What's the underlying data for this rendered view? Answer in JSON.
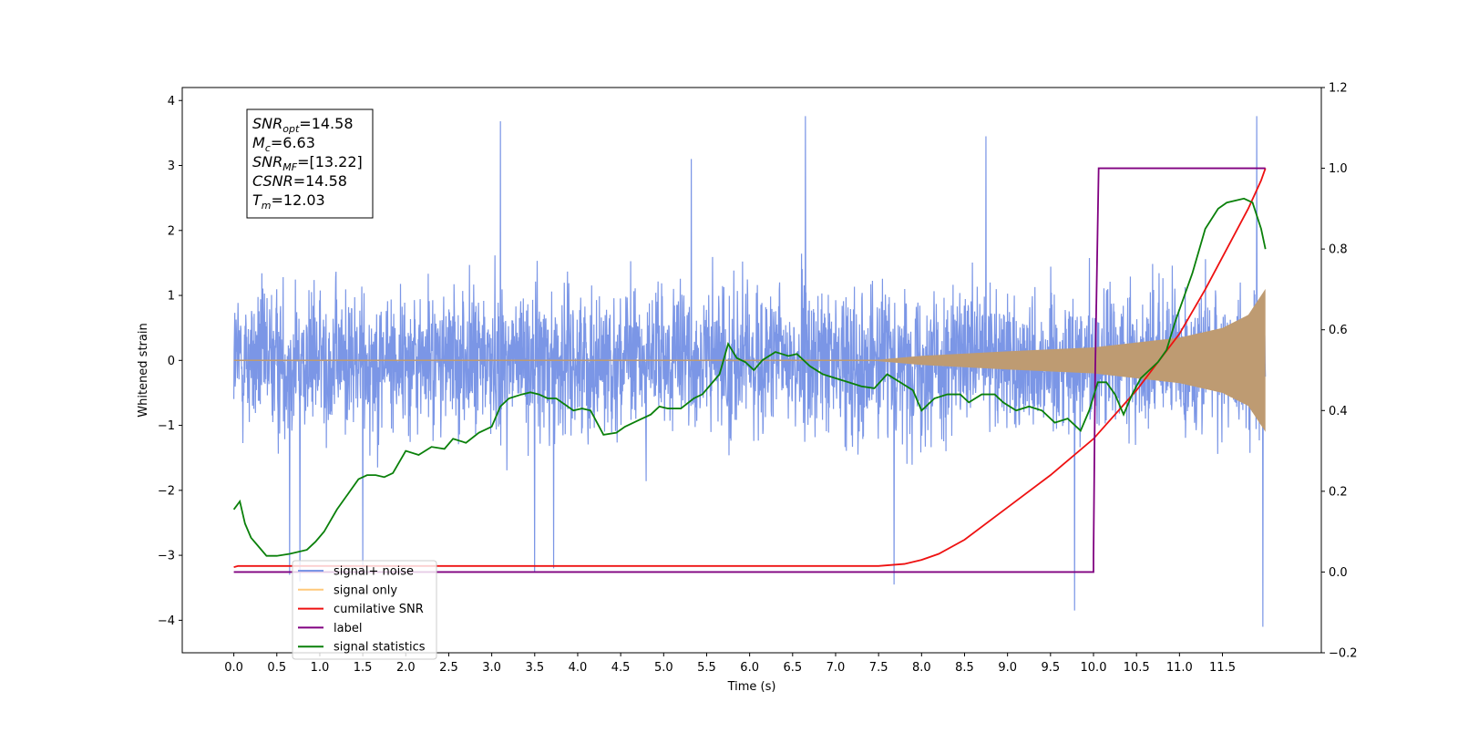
{
  "chart_data": {
    "type": "line",
    "xlabel": "Time (s)",
    "ylabel": "Whitened strain",
    "xlim": [
      -0.6,
      12.65
    ],
    "ylim": [
      -4.5,
      4.2
    ],
    "y2lim": [
      -0.2,
      1.2
    ],
    "x_ticks": [
      0.0,
      0.5,
      1.0,
      1.5,
      2.0,
      2.5,
      3.0,
      3.5,
      4.0,
      4.5,
      5.0,
      5.5,
      6.0,
      6.5,
      7.0,
      7.5,
      8.0,
      8.5,
      9.0,
      9.5,
      10.0,
      10.5,
      11.0,
      11.5
    ],
    "x_tick_labels": [
      "0.0",
      "0.5",
      "1.0",
      "1.5",
      "2.0",
      "2.5",
      "3.0",
      "3.5",
      "4.0",
      "4.5",
      "5.0",
      "5.5",
      "6.0",
      "6.5",
      "7.0",
      "7.5",
      "8.0",
      "8.5",
      "9.0",
      "9.5",
      "10.0",
      "10.5",
      "11.0",
      "11.5"
    ],
    "y_ticks": [
      -4,
      -3,
      -2,
      -1,
      0,
      1,
      2,
      3,
      4
    ],
    "y_tick_labels": [
      "−4",
      "−3",
      "−2",
      "−1",
      "0",
      "1",
      "2",
      "3",
      "4"
    ],
    "y2_ticks": [
      -0.2,
      0.0,
      0.2,
      0.4,
      0.6,
      0.8,
      1.0,
      1.2
    ],
    "y2_tick_labels": [
      "−0.2",
      "0.0",
      "0.2",
      "0.4",
      "0.6",
      "0.8",
      "1.0",
      "1.2"
    ],
    "grid": false,
    "legend_position": "lower-left",
    "info_box": [
      {
        "sym": "SNR",
        "sub": "opt",
        "rest": "=14.58"
      },
      {
        "sym": "M",
        "sub": "c",
        "rest": "=6.63"
      },
      {
        "sym": "SNR",
        "sub": "MF",
        "rest": "=[13.22]"
      },
      {
        "sym": "CSNR",
        "sub": "",
        "rest": "=14.58"
      },
      {
        "sym": "T",
        "sub": "m",
        "rest": "=12.03"
      }
    ],
    "series": [
      {
        "name": "signal+ noise",
        "axis": "left",
        "color": "#7b96e6",
        "kind": "noise",
        "t_range": [
          0.0,
          12.0
        ],
        "typical_range": [
          -2.3,
          2.5
        ],
        "spikes": [
          {
            "x": 0.65,
            "y": -3.3
          },
          {
            "x": 0.77,
            "y": -3.4
          },
          {
            "x": 1.5,
            "y": -3.2
          },
          {
            "x": 3.1,
            "y": 3.68
          },
          {
            "x": 3.5,
            "y": -3.25
          },
          {
            "x": 3.72,
            "y": -3.2
          },
          {
            "x": 5.32,
            "y": 3.1
          },
          {
            "x": 6.65,
            "y": 3.76
          },
          {
            "x": 7.68,
            "y": -3.45
          },
          {
            "x": 8.75,
            "y": 3.45
          },
          {
            "x": 9.78,
            "y": -3.85
          },
          {
            "x": 11.9,
            "y": 3.76
          },
          {
            "x": 11.97,
            "y": -4.1
          }
        ]
      },
      {
        "name": "signal only",
        "axis": "left",
        "color": "#ffc97a",
        "fill_color": "#be9b72",
        "kind": "chirp",
        "t_range": [
          0.0,
          12.0
        ],
        "envelope": [
          {
            "x": 0.0,
            "y": 0.0
          },
          {
            "x": 7.4,
            "y": 0.0
          },
          {
            "x": 8.0,
            "y": 0.07
          },
          {
            "x": 9.0,
            "y": 0.14
          },
          {
            "x": 10.0,
            "y": 0.2
          },
          {
            "x": 11.0,
            "y": 0.35
          },
          {
            "x": 11.5,
            "y": 0.5
          },
          {
            "x": 11.8,
            "y": 0.7
          },
          {
            "x": 12.0,
            "y": 1.1
          }
        ]
      },
      {
        "name": "cumilative SNR",
        "axis": "right",
        "color": "#ee1111",
        "points": [
          [
            0.0,
            0.012
          ],
          [
            0.05,
            0.015
          ],
          [
            7.5,
            0.015
          ],
          [
            7.8,
            0.02
          ],
          [
            8.0,
            0.03
          ],
          [
            8.2,
            0.045
          ],
          [
            8.5,
            0.08
          ],
          [
            9.0,
            0.16
          ],
          [
            9.5,
            0.24
          ],
          [
            10.0,
            0.33
          ],
          [
            10.5,
            0.45
          ],
          [
            11.0,
            0.59
          ],
          [
            11.3,
            0.7
          ],
          [
            11.6,
            0.82
          ],
          [
            11.8,
            0.9
          ],
          [
            11.95,
            0.97
          ],
          [
            12.0,
            1.0
          ]
        ]
      },
      {
        "name": "label",
        "axis": "right",
        "color": "#800080",
        "points": [
          [
            0.0,
            0.0
          ],
          [
            10.0,
            0.0
          ],
          [
            10.0,
            0.04
          ],
          [
            10.02,
            0.5
          ],
          [
            10.06,
            1.0
          ],
          [
            12.0,
            1.0
          ]
        ]
      },
      {
        "name": "signal statistics",
        "axis": "right",
        "color": "#0a800a",
        "points": [
          [
            0.0,
            0.155
          ],
          [
            0.07,
            0.175
          ],
          [
            0.13,
            0.12
          ],
          [
            0.2,
            0.085
          ],
          [
            0.28,
            0.065
          ],
          [
            0.38,
            0.04
          ],
          [
            0.5,
            0.04
          ],
          [
            0.65,
            0.045
          ],
          [
            0.85,
            0.055
          ],
          [
            0.95,
            0.075
          ],
          [
            1.05,
            0.1
          ],
          [
            1.2,
            0.155
          ],
          [
            1.35,
            0.2
          ],
          [
            1.45,
            0.23
          ],
          [
            1.55,
            0.24
          ],
          [
            1.65,
            0.24
          ],
          [
            1.75,
            0.235
          ],
          [
            1.85,
            0.245
          ],
          [
            2.0,
            0.3
          ],
          [
            2.15,
            0.29
          ],
          [
            2.3,
            0.31
          ],
          [
            2.45,
            0.305
          ],
          [
            2.55,
            0.33
          ],
          [
            2.7,
            0.32
          ],
          [
            2.85,
            0.345
          ],
          [
            3.0,
            0.36
          ],
          [
            3.1,
            0.41
          ],
          [
            3.2,
            0.43
          ],
          [
            3.35,
            0.44
          ],
          [
            3.45,
            0.445
          ],
          [
            3.55,
            0.44
          ],
          [
            3.65,
            0.43
          ],
          [
            3.75,
            0.43
          ],
          [
            3.85,
            0.415
          ],
          [
            3.95,
            0.4
          ],
          [
            4.05,
            0.405
          ],
          [
            4.15,
            0.4
          ],
          [
            4.3,
            0.34
          ],
          [
            4.45,
            0.345
          ],
          [
            4.55,
            0.36
          ],
          [
            4.7,
            0.375
          ],
          [
            4.85,
            0.39
          ],
          [
            4.95,
            0.41
          ],
          [
            5.05,
            0.405
          ],
          [
            5.2,
            0.405
          ],
          [
            5.35,
            0.43
          ],
          [
            5.45,
            0.44
          ],
          [
            5.55,
            0.465
          ],
          [
            5.65,
            0.49
          ],
          [
            5.75,
            0.565
          ],
          [
            5.85,
            0.53
          ],
          [
            5.95,
            0.52
          ],
          [
            6.05,
            0.5
          ],
          [
            6.15,
            0.525
          ],
          [
            6.3,
            0.545
          ],
          [
            6.45,
            0.535
          ],
          [
            6.55,
            0.54
          ],
          [
            6.7,
            0.51
          ],
          [
            6.85,
            0.49
          ],
          [
            7.0,
            0.48
          ],
          [
            7.15,
            0.47
          ],
          [
            7.3,
            0.46
          ],
          [
            7.45,
            0.455
          ],
          [
            7.6,
            0.49
          ],
          [
            7.75,
            0.47
          ],
          [
            7.9,
            0.45
          ],
          [
            8.0,
            0.4
          ],
          [
            8.15,
            0.43
          ],
          [
            8.3,
            0.44
          ],
          [
            8.45,
            0.44
          ],
          [
            8.55,
            0.42
          ],
          [
            8.7,
            0.44
          ],
          [
            8.85,
            0.44
          ],
          [
            8.95,
            0.42
          ],
          [
            9.1,
            0.4
          ],
          [
            9.25,
            0.41
          ],
          [
            9.4,
            0.4
          ],
          [
            9.55,
            0.37
          ],
          [
            9.7,
            0.38
          ],
          [
            9.85,
            0.35
          ],
          [
            9.95,
            0.4
          ],
          [
            10.05,
            0.47
          ],
          [
            10.15,
            0.47
          ],
          [
            10.25,
            0.44
          ],
          [
            10.35,
            0.39
          ],
          [
            10.45,
            0.44
          ],
          [
            10.55,
            0.48
          ],
          [
            10.65,
            0.5
          ],
          [
            10.75,
            0.52
          ],
          [
            10.85,
            0.55
          ],
          [
            10.95,
            0.62
          ],
          [
            11.05,
            0.68
          ],
          [
            11.15,
            0.74
          ],
          [
            11.3,
            0.85
          ],
          [
            11.45,
            0.9
          ],
          [
            11.55,
            0.915
          ],
          [
            11.65,
            0.92
          ],
          [
            11.75,
            0.925
          ],
          [
            11.85,
            0.915
          ],
          [
            11.95,
            0.85
          ],
          [
            12.0,
            0.8
          ]
        ]
      }
    ]
  }
}
